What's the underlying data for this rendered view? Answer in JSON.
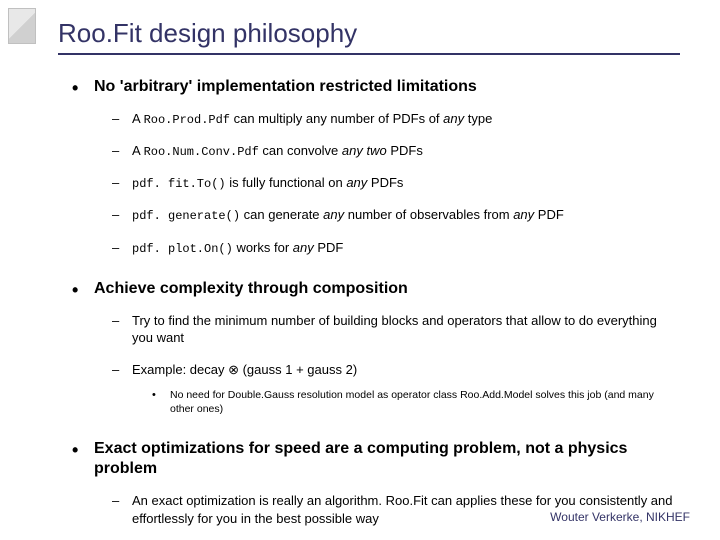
{
  "title": "Roo.Fit design philosophy",
  "footer": "Wouter Verkerke, NIKHEF",
  "bullets": {
    "b1": "No 'arbitrary' implementation restricted limitations",
    "b1_1_pre": "A ",
    "b1_1_code": "Roo.Prod.Pdf",
    "b1_1_post": " can multiply any number of PDFs of ",
    "b1_1_any": "any",
    "b1_1_end": " type",
    "b1_2_pre": "A ",
    "b1_2_code": "Roo.Num.Conv.Pdf",
    "b1_2_post": " can convolve ",
    "b1_2_any": "any two",
    "b1_2_end": " PDFs",
    "b1_3_code": "pdf. fit.To()",
    "b1_3_post": " is fully functional on ",
    "b1_3_any": "any",
    "b1_3_end": " PDFs",
    "b1_4_code": "pdf. generate()",
    "b1_4_post": " can generate ",
    "b1_4_any1": "any",
    "b1_4_mid": " number of observables from ",
    "b1_4_any2": "any",
    "b1_4_end": " PDF",
    "b1_5_code": "pdf. plot.On()",
    "b1_5_post": " works for ",
    "b1_5_any": "any",
    "b1_5_end": " PDF",
    "b2": "Achieve complexity through composition",
    "b2_1": "Try to find the minimum number of building blocks and operators that allow to do everything you want",
    "b2_2": "Example: decay ⊗ (gauss 1 + gauss 2)",
    "b2_2_1": "No need for Double.Gauss resolution model as operator class Roo.Add.Model solves this job (and many other ones)",
    "b3": "Exact optimizations for speed are a computing problem, not a physics problem",
    "b3_1": "An exact optimization is really an algorithm. Roo.Fit can applies these for you consistently and effortlessly for you in the best possible way"
  }
}
